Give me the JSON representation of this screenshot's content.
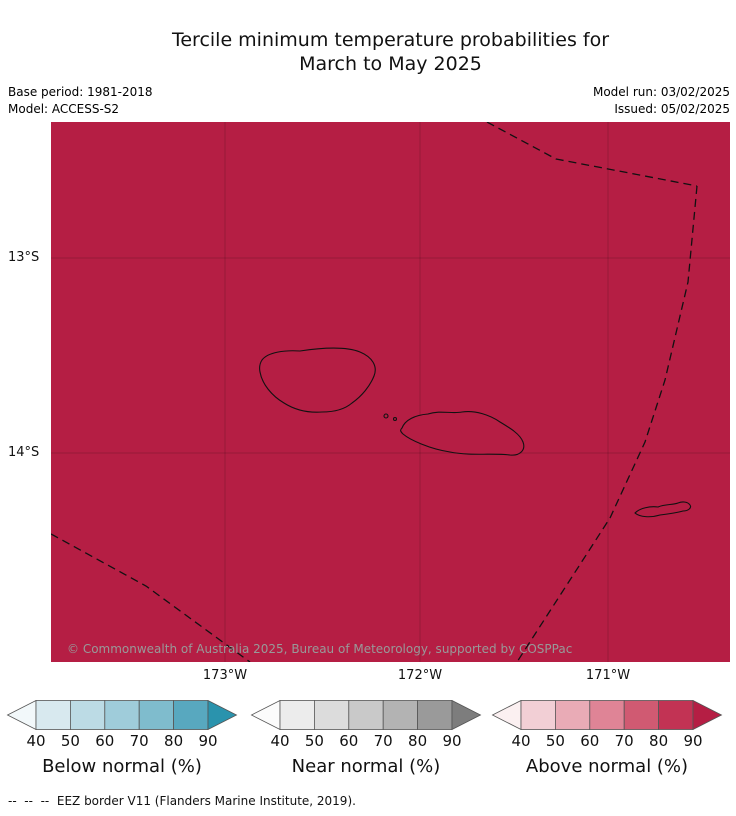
{
  "header": {
    "title_line1": "Tercile minimum temperature probabilities for",
    "title_line2": "March to May 2025",
    "base_period": "Base period: 1981-2018",
    "model": "Model: ACCESS-S2",
    "model_run": "Model run: 03/02/2025",
    "issued": "Issued: 05/02/2025"
  },
  "map": {
    "fill_color": "#b51e44",
    "copyright": "© Commonwealth of Australia 2025, Bureau of Meteorology, supported by COSPPac",
    "lat_labels": [
      {
        "label": "13°S"
      },
      {
        "label": "14°S"
      }
    ],
    "lon_labels": [
      {
        "label": "173°W"
      },
      {
        "label": "172°W"
      },
      {
        "label": "171°W"
      }
    ]
  },
  "legends": [
    {
      "title": "Below normal (%)",
      "ticks": [
        "40",
        "50",
        "60",
        "70",
        "80",
        "90"
      ],
      "colors": [
        "#f2f8fa",
        "#d8e9ef",
        "#bcdbe5",
        "#9fccda",
        "#7fbccd",
        "#58a8bf",
        "#2a93ad"
      ]
    },
    {
      "title": "Near normal (%)",
      "ticks": [
        "40",
        "50",
        "60",
        "70",
        "80",
        "90"
      ],
      "colors": [
        "#fbfbfb",
        "#ececec",
        "#dcdcdc",
        "#c9c9c9",
        "#b3b3b3",
        "#9a9a9a",
        "#7d7d7d"
      ]
    },
    {
      "title": "Above normal (%)",
      "ticks": [
        "40",
        "50",
        "60",
        "70",
        "80",
        "90"
      ],
      "colors": [
        "#fbf0f1",
        "#f2cfd5",
        "#e9abb6",
        "#df8496",
        "#d05a72",
        "#c23354",
        "#b51e44"
      ]
    }
  ],
  "footer": {
    "eez_note": "--  --  --  EEZ border V11 (Flanders Marine Institute, 2019)."
  }
}
